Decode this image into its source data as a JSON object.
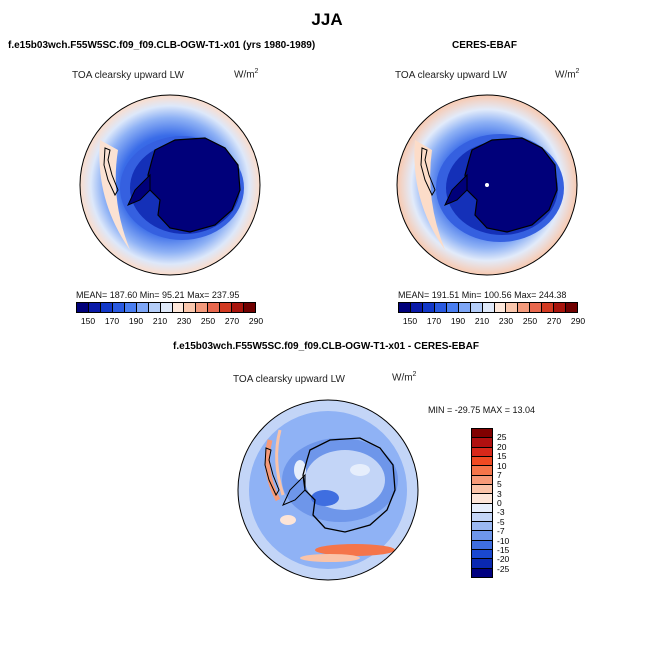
{
  "title": "JJA",
  "panels": [
    {
      "case": "f.e15b03wch.F55W5SC.f09_f09.CLB-OGW-T1-x01 (yrs 1980-1989)",
      "variable": "TOA clearsky upward LW",
      "units_base": "W/m",
      "units_exp": "2",
      "stats": "MEAN= 187.60   Min=  95.21   Max= 237.95"
    },
    {
      "case": "CERES-EBAF",
      "variable": "TOA clearsky upward LW",
      "units_base": "W/m",
      "units_exp": "2",
      "stats": "MEAN= 191.51   Min= 100.56   Max= 244.38"
    },
    {
      "case": "f.e15b03wch.F55W5SC.f09_f09.CLB-OGW-T1-x01 - CERES-EBAF",
      "variable": "TOA clearsky upward LW",
      "units_base": "W/m",
      "units_exp": "2",
      "stats": "MIN = -29.75 MAX =  13.04"
    }
  ],
  "abs_colorbar": {
    "ticks": [
      "150",
      "170",
      "190",
      "210",
      "230",
      "250",
      "270",
      "290"
    ],
    "colors": [
      "#00007a",
      "#0a1aa8",
      "#1238c8",
      "#2a5ae0",
      "#4a7ef0",
      "#7ea6f6",
      "#b4cdf8",
      "#dfe9f9",
      "#fde7da",
      "#fac7ad",
      "#f39a7c",
      "#e8684e",
      "#d23a22",
      "#a8140c",
      "#700000"
    ]
  },
  "diff_colorbar": {
    "ticks": [
      "25",
      "20",
      "15",
      "10",
      "7",
      "5",
      "3",
      "0",
      "-3",
      "-5",
      "-7",
      "-10",
      "-15",
      "-20",
      "-25"
    ],
    "colors": [
      "#800000",
      "#b01010",
      "#d8281a",
      "#f04a22",
      "#f5754a",
      "#f79a78",
      "#fac3a8",
      "#fde5d8",
      "#e6eefc",
      "#c3d5f7",
      "#9ab8f2",
      "#6e96ea",
      "#3f6ee0",
      "#1a48d0",
      "#0a28b0",
      "#000080"
    ]
  }
}
